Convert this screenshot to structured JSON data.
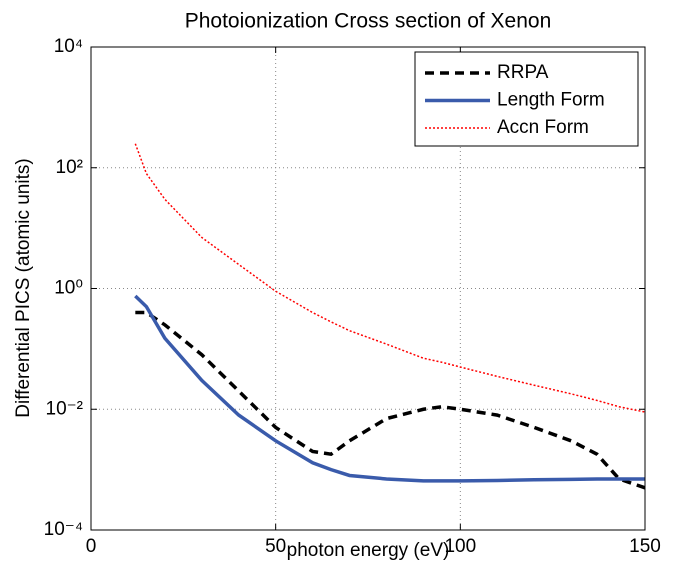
{
  "chart_data": {
    "type": "line",
    "title": "Photoionization Cross section of Xenon",
    "xlabel": "photon energy (eV)",
    "ylabel": "Differential PICS (atomic units)",
    "x": [
      12,
      15,
      20,
      30,
      40,
      50,
      60,
      65,
      70,
      80,
      90,
      95,
      100,
      110,
      120,
      130,
      137,
      143,
      150
    ],
    "series": [
      {
        "name": "RRPA",
        "color": "#000000",
        "dash": "dashed",
        "values": [
          0.4,
          0.4,
          0.25,
          0.08,
          0.02,
          0.005,
          0.002,
          0.0018,
          0.003,
          0.007,
          0.01,
          0.011,
          0.01,
          0.008,
          0.005,
          0.003,
          0.0018,
          0.0007,
          0.0005
        ]
      },
      {
        "name": "Length Form",
        "color": "#3a5bab",
        "dash": "solid",
        "values": [
          0.75,
          0.5,
          0.15,
          0.03,
          0.008,
          0.003,
          0.0013,
          0.001,
          0.0008,
          0.0007,
          0.00065,
          0.00065,
          0.00065,
          0.00066,
          0.00068,
          0.00069,
          0.0007,
          0.0007,
          0.0007
        ]
      },
      {
        "name": "Accn Form",
        "color": "#ff0000",
        "dash": "dotted",
        "values": [
          250,
          80,
          30,
          7,
          2.5,
          0.9,
          0.4,
          0.28,
          0.2,
          0.12,
          0.07,
          0.06,
          0.05,
          0.035,
          0.025,
          0.018,
          0.014,
          0.011,
          0.009
        ]
      }
    ],
    "xlim": [
      0,
      150
    ],
    "xticks": [
      0,
      50,
      100,
      150
    ],
    "ylim": [
      0.0001,
      10000
    ],
    "yticks": [
      {
        "value": 0.0001,
        "label": "10⁻⁴"
      },
      {
        "value": 0.01,
        "label": "10⁻²"
      },
      {
        "value": 1,
        "label": "10⁰"
      },
      {
        "value": 100,
        "label": "10²"
      },
      {
        "value": 10000,
        "label": "10⁴"
      }
    ],
    "yscale": "log",
    "grid": true,
    "legend": "upper right"
  }
}
